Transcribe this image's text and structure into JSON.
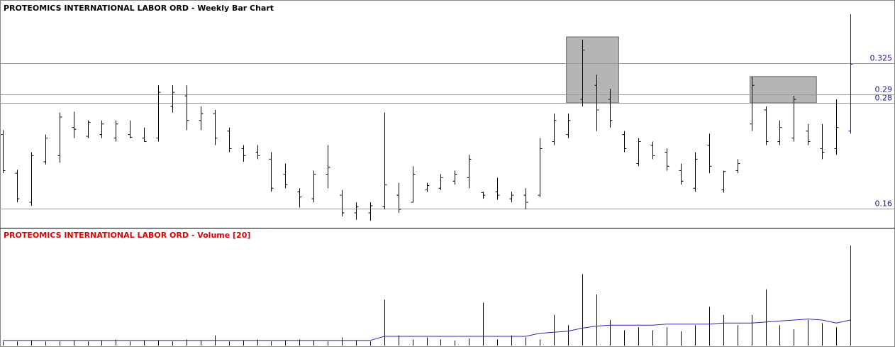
{
  "chart_data": [
    {
      "type": "ohlc",
      "title": "PROTEOMICS INTERNATIONAL LABOR ORD - Weekly Bar Chart",
      "color": "#000000",
      "last_bar_color": "#1a1aa6",
      "ylim": [
        0.138,
        0.397
      ],
      "yticks": [
        0.16,
        0.28,
        0.29,
        0.325
      ],
      "grid": true,
      "open": [
        0.244,
        0.2,
        0.167,
        0.213,
        0.22,
        0.252,
        0.242,
        0.244,
        0.24,
        0.244,
        0.24,
        0.24,
        0.276,
        0.288,
        0.26,
        0.268,
        0.248,
        0.228,
        0.224,
        0.216,
        0.199,
        0.179,
        0.171,
        0.199,
        0.175,
        0.155,
        0.155,
        0.162,
        0.175,
        0.167,
        0.181,
        0.183,
        0.191,
        0.195,
        0.178,
        0.179,
        0.171,
        0.175,
        0.175,
        0.236,
        0.244,
        0.284,
        0.3,
        0.284,
        0.244,
        0.211,
        0.232,
        0.224,
        0.203,
        0.183,
        0.232,
        0.181,
        0.203,
        0.256,
        0.272,
        0.236,
        0.24,
        0.248,
        0.228,
        0.228,
        0.248
      ],
      "high": [
        0.249,
        0.204,
        0.224,
        0.244,
        0.269,
        0.27,
        0.26,
        0.26,
        0.26,
        0.26,
        0.252,
        0.3,
        0.3,
        0.3,
        0.276,
        0.272,
        0.252,
        0.232,
        0.232,
        0.224,
        0.211,
        0.183,
        0.203,
        0.232,
        0.181,
        0.167,
        0.167,
        0.269,
        0.189,
        0.208,
        0.189,
        0.199,
        0.203,
        0.221,
        0.179,
        0.195,
        0.179,
        0.183,
        0.24,
        0.268,
        0.268,
        0.352,
        0.312,
        0.296,
        0.248,
        0.24,
        0.236,
        0.228,
        0.211,
        0.224,
        0.245,
        0.203,
        0.216,
        0.31,
        0.276,
        0.26,
        0.288,
        0.256,
        0.256,
        0.284,
        0.381
      ],
      "low": [
        0.2,
        0.167,
        0.163,
        0.21,
        0.212,
        0.24,
        0.24,
        0.24,
        0.236,
        0.24,
        0.236,
        0.236,
        0.269,
        0.249,
        0.249,
        0.232,
        0.224,
        0.213,
        0.216,
        0.179,
        0.183,
        0.161,
        0.167,
        0.183,
        0.151,
        0.147,
        0.146,
        0.159,
        0.155,
        0.167,
        0.179,
        0.181,
        0.187,
        0.183,
        0.171,
        0.17,
        0.167,
        0.159,
        0.173,
        0.232,
        0.24,
        0.276,
        0.248,
        0.252,
        0.224,
        0.208,
        0.216,
        0.203,
        0.187,
        0.179,
        0.2,
        0.178,
        0.2,
        0.248,
        0.232,
        0.232,
        0.236,
        0.232,
        0.216,
        0.221,
        0.245
      ],
      "close": [
        0.203,
        0.171,
        0.22,
        0.24,
        0.264,
        0.25,
        0.258,
        0.256,
        0.256,
        0.241,
        0.236,
        0.292,
        0.292,
        0.26,
        0.268,
        0.24,
        0.228,
        0.22,
        0.22,
        0.183,
        0.187,
        0.173,
        0.199,
        0.207,
        0.155,
        0.162,
        0.163,
        0.187,
        0.159,
        0.199,
        0.186,
        0.195,
        0.199,
        0.216,
        0.175,
        0.175,
        0.175,
        0.167,
        0.228,
        0.26,
        0.26,
        0.34,
        0.272,
        0.26,
        0.228,
        0.236,
        0.22,
        0.208,
        0.191,
        0.216,
        0.208,
        0.202,
        0.211,
        0.3,
        0.236,
        0.252,
        0.284,
        0.236,
        0.224,
        0.252,
        0.324
      ],
      "highlights": [
        {
          "start": 40,
          "end": 43,
          "top": 0.355,
          "bottom": 0.28
        },
        {
          "start": 53,
          "end": 57,
          "top": 0.31,
          "bottom": 0.28
        }
      ]
    },
    {
      "type": "volume",
      "title": "PROTEOMICS INTERNATIONAL LABOR ORD - Volume [20]",
      "title_color": "#e00000",
      "ylim": [
        0,
        100
      ],
      "series": [
        {
          "color": "#000000",
          "last_color": "#1a1aa6",
          "values": [
            4,
            4,
            5,
            4,
            4,
            5,
            4,
            5,
            6,
            4,
            5,
            5,
            4,
            6,
            5,
            10,
            4,
            5,
            6,
            4,
            5,
            6,
            5,
            4,
            8,
            5,
            4,
            45,
            10,
            6,
            8,
            6,
            5,
            7,
            42,
            6,
            10,
            8,
            6,
            30,
            20,
            70,
            50,
            25,
            15,
            18,
            15,
            18,
            14,
            20,
            38,
            30,
            20,
            30,
            55,
            20,
            16,
            25,
            22,
            18,
            98
          ]
        },
        {
          "color": "#2a2ab0",
          "values": [
            5,
            5,
            5,
            5,
            5,
            5,
            5,
            5,
            5,
            5,
            5,
            5,
            5,
            5,
            5,
            5,
            5,
            5,
            5,
            5,
            5,
            5,
            5,
            5,
            5,
            5,
            5,
            9,
            9,
            9,
            9,
            9,
            9,
            9,
            9,
            9,
            9,
            9,
            12,
            13,
            14,
            17,
            19,
            20,
            20,
            20,
            20,
            21,
            21,
            21,
            21,
            22,
            22,
            22,
            23,
            24,
            25,
            26,
            25,
            22,
            25
          ]
        }
      ]
    }
  ]
}
